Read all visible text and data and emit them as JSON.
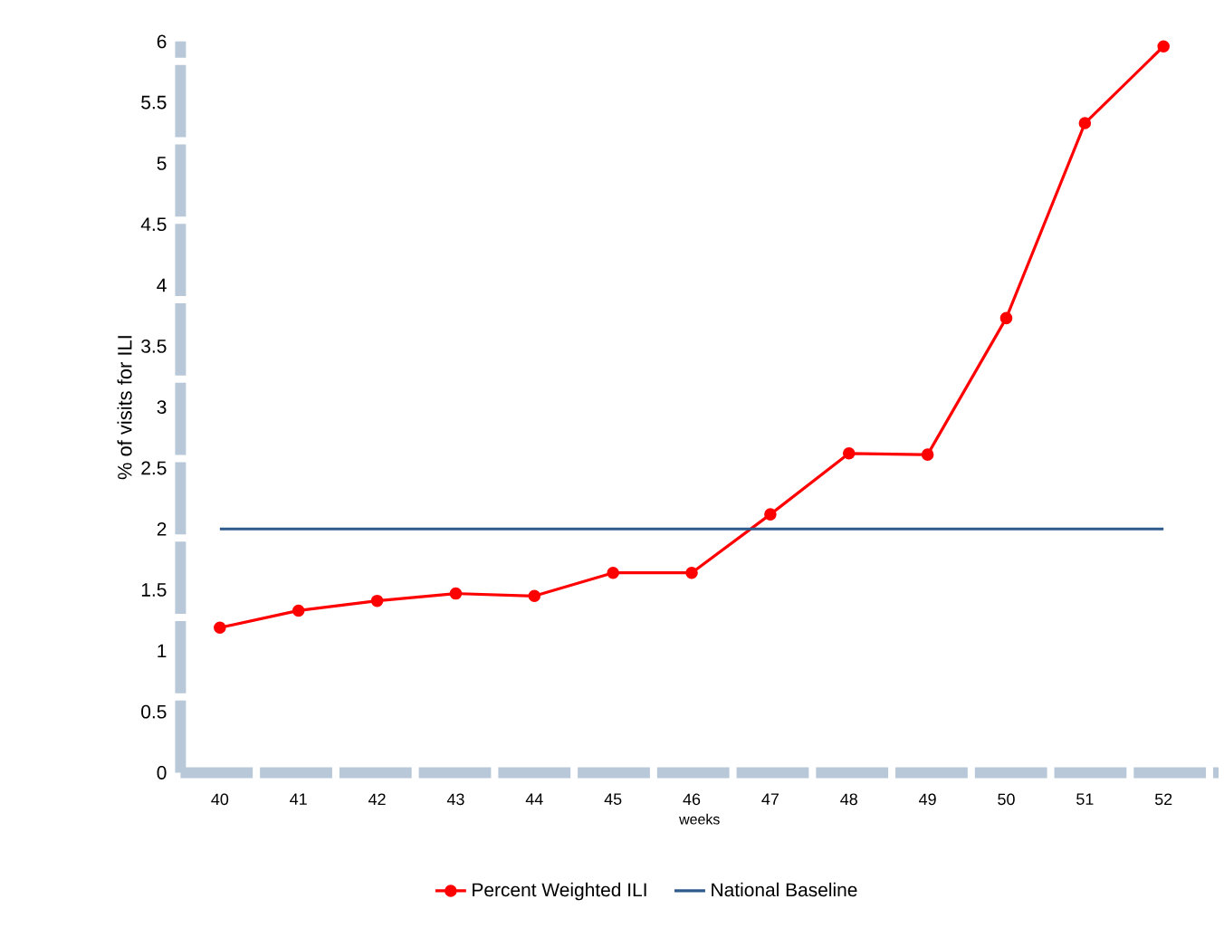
{
  "chart_data": {
    "type": "line",
    "xlabel": "weeks",
    "ylabel": "% of visits for ILI",
    "categories": [
      "40",
      "41",
      "42",
      "43",
      "44",
      "45",
      "46",
      "47",
      "48",
      "49",
      "50",
      "51",
      "52"
    ],
    "series": [
      {
        "name": "Percent Weighted ILI",
        "color": "#ff0000",
        "marker": "circle",
        "values": [
          1.19,
          1.33,
          1.41,
          1.47,
          1.45,
          1.64,
          1.64,
          2.12,
          2.62,
          2.61,
          3.73,
          5.33,
          5.96
        ]
      },
      {
        "name": "National Baseline",
        "color": "#2e5a8c",
        "marker": "none",
        "values": [
          2,
          2,
          2,
          2,
          2,
          2,
          2,
          2,
          2,
          2,
          2,
          2,
          2
        ]
      }
    ],
    "ylim": [
      0,
      6
    ],
    "yticks": [
      0,
      0.5,
      1,
      1.5,
      2,
      2.5,
      3,
      3.5,
      4,
      4.5,
      5,
      5.5,
      6
    ],
    "grid": false,
    "legend": "bottom",
    "line_style": "solid"
  }
}
